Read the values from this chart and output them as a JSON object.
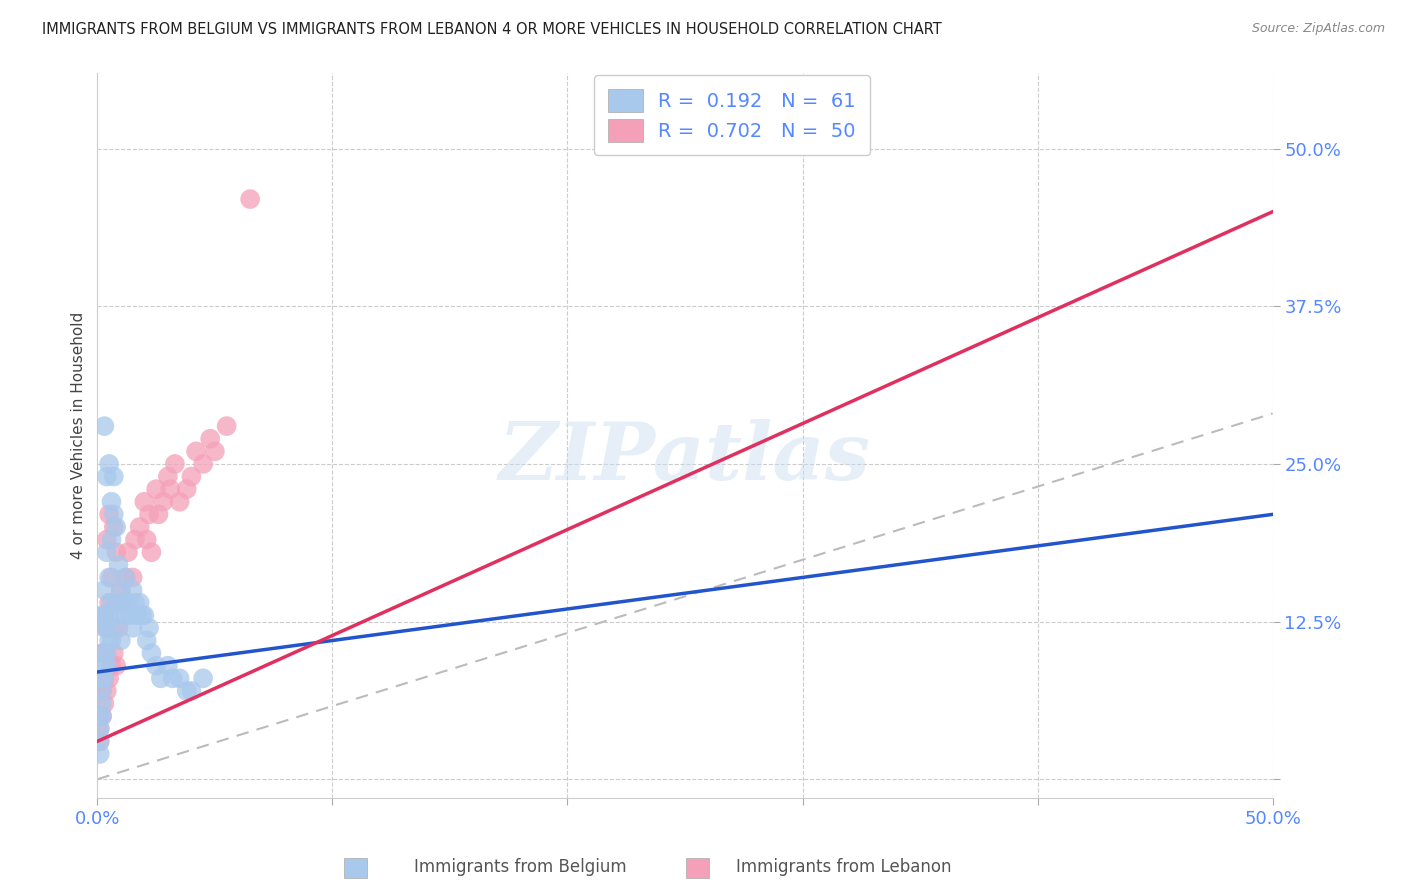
{
  "title": "IMMIGRANTS FROM BELGIUM VS IMMIGRANTS FROM LEBANON 4 OR MORE VEHICLES IN HOUSEHOLD CORRELATION CHART",
  "source": "Source: ZipAtlas.com",
  "ylabel": "4 or more Vehicles in Household",
  "xlim": [
    0,
    0.5
  ],
  "ylim": [
    -0.015,
    0.56
  ],
  "watermark": "ZIPatlas",
  "legend_belgium_r": "0.192",
  "legend_belgium_n": "61",
  "legend_lebanon_r": "0.702",
  "legend_lebanon_n": "50",
  "belgium_color": "#a8c8ec",
  "lebanon_color": "#f4a0b8",
  "belgium_line_color": "#2255cc",
  "lebanon_line_color": "#e03060",
  "diagonal_color": "#bbbbbb",
  "tick_label_color": "#5588ff",
  "belgium_scatter_x": [
    0.001,
    0.001,
    0.001,
    0.001,
    0.002,
    0.002,
    0.002,
    0.002,
    0.002,
    0.003,
    0.003,
    0.003,
    0.003,
    0.003,
    0.003,
    0.003,
    0.004,
    0.004,
    0.004,
    0.004,
    0.004,
    0.005,
    0.005,
    0.005,
    0.005,
    0.006,
    0.006,
    0.006,
    0.006,
    0.007,
    0.007,
    0.007,
    0.008,
    0.008,
    0.009,
    0.009,
    0.01,
    0.01,
    0.011,
    0.012,
    0.012,
    0.013,
    0.014,
    0.015,
    0.015,
    0.016,
    0.017,
    0.018,
    0.019,
    0.02,
    0.021,
    0.022,
    0.023,
    0.025,
    0.027,
    0.03,
    0.032,
    0.035,
    0.038,
    0.04,
    0.045
  ],
  "belgium_scatter_y": [
    0.05,
    0.04,
    0.03,
    0.02,
    0.13,
    0.08,
    0.07,
    0.06,
    0.05,
    0.28,
    0.15,
    0.13,
    0.12,
    0.1,
    0.09,
    0.08,
    0.24,
    0.18,
    0.12,
    0.1,
    0.09,
    0.25,
    0.16,
    0.13,
    0.11,
    0.22,
    0.19,
    0.14,
    0.11,
    0.24,
    0.21,
    0.12,
    0.2,
    0.14,
    0.17,
    0.13,
    0.15,
    0.11,
    0.14,
    0.16,
    0.13,
    0.14,
    0.13,
    0.15,
    0.12,
    0.14,
    0.13,
    0.14,
    0.13,
    0.13,
    0.11,
    0.12,
    0.1,
    0.09,
    0.08,
    0.09,
    0.08,
    0.08,
    0.07,
    0.07,
    0.08
  ],
  "lebanon_scatter_x": [
    0.001,
    0.001,
    0.001,
    0.002,
    0.002,
    0.002,
    0.002,
    0.003,
    0.003,
    0.003,
    0.003,
    0.004,
    0.004,
    0.004,
    0.005,
    0.005,
    0.005,
    0.006,
    0.006,
    0.007,
    0.007,
    0.008,
    0.008,
    0.009,
    0.01,
    0.011,
    0.012,
    0.013,
    0.015,
    0.016,
    0.018,
    0.02,
    0.021,
    0.022,
    0.023,
    0.025,
    0.026,
    0.028,
    0.03,
    0.031,
    0.033,
    0.035,
    0.038,
    0.04,
    0.042,
    0.045,
    0.048,
    0.05,
    0.055,
    0.065
  ],
  "lebanon_scatter_y": [
    0.05,
    0.04,
    0.03,
    0.1,
    0.08,
    0.07,
    0.05,
    0.13,
    0.1,
    0.08,
    0.06,
    0.19,
    0.12,
    0.07,
    0.21,
    0.14,
    0.08,
    0.16,
    0.09,
    0.2,
    0.1,
    0.18,
    0.09,
    0.12,
    0.15,
    0.14,
    0.16,
    0.18,
    0.16,
    0.19,
    0.2,
    0.22,
    0.19,
    0.21,
    0.18,
    0.23,
    0.21,
    0.22,
    0.24,
    0.23,
    0.25,
    0.22,
    0.23,
    0.24,
    0.26,
    0.25,
    0.27,
    0.26,
    0.28,
    0.46
  ],
  "belgium_line_x": [
    0.0,
    0.5
  ],
  "belgium_line_y": [
    0.085,
    0.21
  ],
  "lebanon_line_x": [
    0.0,
    0.5
  ],
  "lebanon_line_y": [
    0.03,
    0.45
  ]
}
